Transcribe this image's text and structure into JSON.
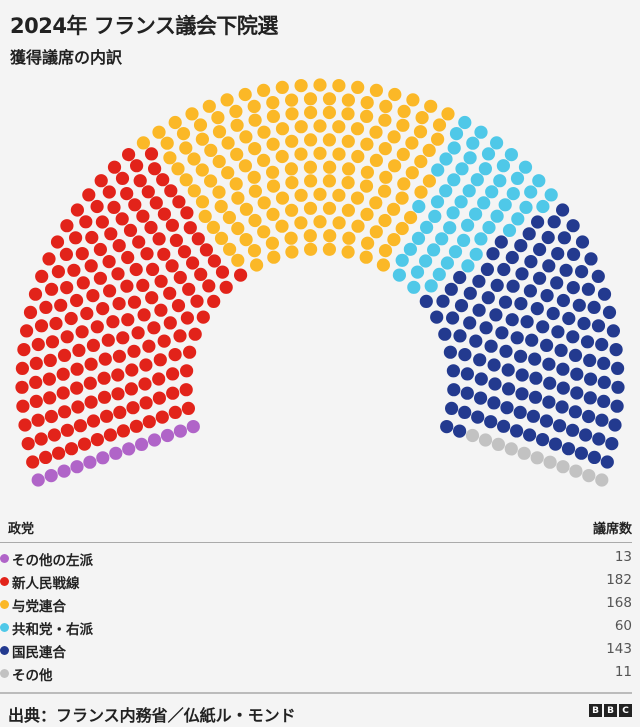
{
  "header": {
    "title": "2024年 フランス議会下院選",
    "subtitle": "獲得議席の内訳"
  },
  "legend": {
    "party_header": "政党",
    "seats_header": "議席数"
  },
  "footer": {
    "source": "出典：フランス内務省／仏紙ル・モンド",
    "logo": "BBC"
  },
  "chart_data": {
    "type": "parliament",
    "title": "2024年 フランス議会下院選",
    "subtitle": "獲得議席の内訳",
    "total": 577,
    "series": [
      {
        "name": "その他の左派",
        "value": 13,
        "color": "#b064c8"
      },
      {
        "name": "新人民戦線",
        "value": 182,
        "color": "#e2231a"
      },
      {
        "name": "与党連合",
        "value": 168,
        "color": "#fbb827"
      },
      {
        "name": "共和党・右派",
        "value": 60,
        "color": "#4fc8e8"
      },
      {
        "name": "国民連合",
        "value": 143,
        "color": "#233a8f"
      },
      {
        "name": "その他",
        "value": 11,
        "color": "#c2c2c2"
      }
    ]
  }
}
